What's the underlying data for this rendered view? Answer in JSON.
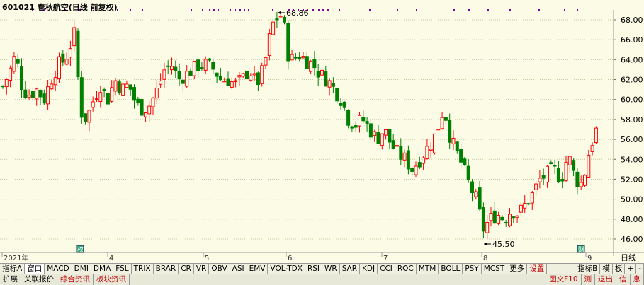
{
  "title": "601021 春秋航空(日线 前复权)",
  "price_axis": [
    "68.00",
    "66.00",
    "64.00",
    "62.00",
    "60.00",
    "58.00",
    "56.00",
    "54.00",
    "52.00",
    "50.00",
    "48.00",
    "46.00"
  ],
  "time_axis": [
    "2021年",
    "4",
    "5",
    "6",
    "7",
    "8",
    "9"
  ],
  "period": "日线",
  "high_label": "68.86",
  "low_label": "45.50",
  "markers": {
    "quan": "权",
    "cai": "财"
  },
  "colors": {
    "up": "#FF0000",
    "down": "#008000",
    "bg": "#FBFBE6",
    "grid": "#C8C8A0"
  },
  "toolbar": {
    "items": [
      "指标A",
      "窗口",
      "MACD",
      "DMI",
      "DMA",
      "FSL",
      "TRIX",
      "BRAR",
      "CR",
      "VR",
      "OBV",
      "ASI",
      "EMV",
      "VOL-TDX",
      "RSI",
      "WR",
      "SAR",
      "KDJ",
      "CCI",
      "ROC",
      "MTM",
      "BOLL",
      "PSY",
      "MCST",
      "更多",
      "设置"
    ],
    "right_items": [
      "指标B",
      "模",
      "板"
    ]
  },
  "status": {
    "items": [
      "扩展",
      "关联报价",
      "综合资讯",
      "板块资讯"
    ],
    "right_items": [
      "图文F10",
      "测",
      "退出",
      "信",
      "息"
    ]
  },
  "zoom": {
    "plus": "+",
    "minus": "-"
  }
}
